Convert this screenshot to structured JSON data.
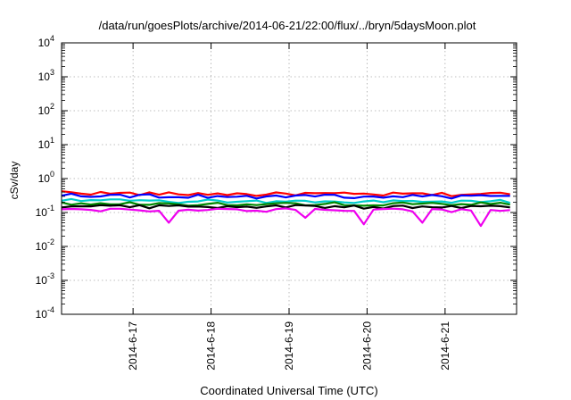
{
  "chart_data": {
    "type": "line",
    "title": "/data/run/goesPlots/archive/2014-06-21/22:00/flux/../bryn/5daysMoon.plot",
    "xlabel": "Coordinated Universal Time (UTC)",
    "ylabel": "cSv/day",
    "yscale": "log",
    "ylim": [
      0.0001,
      10000
    ],
    "xlim": [
      "2014-06-16 02:00",
      "2014-06-21 22:00"
    ],
    "grid": true,
    "x_ticks": [
      {
        "value": "2014-06-17 00:00",
        "label": "2014-6-17"
      },
      {
        "value": "2014-06-18 00:00",
        "label": "2014-6-18"
      },
      {
        "value": "2014-06-19 00:00",
        "label": "2014-6-19"
      },
      {
        "value": "2014-06-20 00:00",
        "label": "2014-6-20"
      },
      {
        "value": "2014-06-21 00:00",
        "label": "2014-6-21"
      }
    ],
    "y_ticks": [
      {
        "value": 0.0001,
        "base": "10",
        "exp": "-4"
      },
      {
        "value": 0.001,
        "base": "10",
        "exp": "-3"
      },
      {
        "value": 0.01,
        "base": "10",
        "exp": "-2"
      },
      {
        "value": 0.1,
        "base": "10",
        "exp": "-1"
      },
      {
        "value": 1,
        "base": "10",
        "exp": "0"
      },
      {
        "value": 10,
        "base": "10",
        "exp": "1"
      },
      {
        "value": 100,
        "base": "10",
        "exp": "2"
      },
      {
        "value": 1000,
        "base": "10",
        "exp": "3"
      },
      {
        "value": 10000,
        "base": "10",
        "exp": "4"
      }
    ],
    "series": [
      {
        "color": "#ff0000",
        "x": [
          "2014-06-16 02:00",
          "2014-06-16 14:00",
          "2014-06-17 02:00",
          "2014-06-17 14:00",
          "2014-06-18 02:00",
          "2014-06-18 14:00",
          "2014-06-19 02:00",
          "2014-06-19 14:00",
          "2014-06-20 02:00",
          "2014-06-20 14:00",
          "2014-06-21 02:00",
          "2014-06-21 14:00",
          "2014-06-21 22:00"
        ],
        "values": [
          0.4,
          0.37,
          0.36,
          0.35,
          0.36,
          0.34,
          0.36,
          0.35,
          0.34,
          0.35,
          0.34,
          0.36,
          0.35
        ]
      },
      {
        "color": "#0000ff",
        "x": [
          "2014-06-16 02:00",
          "2014-06-16 14:00",
          "2014-06-17 02:00",
          "2014-06-17 14:00",
          "2014-06-18 02:00",
          "2014-06-18 14:00",
          "2014-06-19 02:00",
          "2014-06-19 14:00",
          "2014-06-20 02:00",
          "2014-06-20 14:00",
          "2014-06-21 02:00",
          "2014-06-21 14:00",
          "2014-06-21 22:00"
        ],
        "values": [
          0.35,
          0.32,
          0.31,
          0.3,
          0.31,
          0.29,
          0.31,
          0.3,
          0.29,
          0.3,
          0.29,
          0.31,
          0.3
        ]
      },
      {
        "color": "#00cccc",
        "x": [
          "2014-06-16 02:00",
          "2014-06-16 14:00",
          "2014-06-17 02:00",
          "2014-06-17 14:00",
          "2014-06-18 02:00",
          "2014-06-18 14:00",
          "2014-06-19 02:00",
          "2014-06-19 14:00",
          "2014-06-20 02:00",
          "2014-06-20 14:00",
          "2014-06-21 02:00",
          "2014-06-21 14:00",
          "2014-06-21 22:00"
        ],
        "values": [
          0.23,
          0.22,
          0.22,
          0.21,
          0.22,
          0.21,
          0.22,
          0.21,
          0.21,
          0.21,
          0.21,
          0.22,
          0.21
        ]
      },
      {
        "color": "#008800",
        "x": [
          "2014-06-16 02:00",
          "2014-06-16 14:00",
          "2014-06-17 02:00",
          "2014-06-17 14:00",
          "2014-06-18 02:00",
          "2014-06-18 14:00",
          "2014-06-19 02:00",
          "2014-06-19 14:00",
          "2014-06-20 02:00",
          "2014-06-20 14:00",
          "2014-06-21 02:00",
          "2014-06-21 14:00",
          "2014-06-21 22:00"
        ],
        "values": [
          0.19,
          0.18,
          0.18,
          0.18,
          0.18,
          0.17,
          0.18,
          0.18,
          0.17,
          0.18,
          0.17,
          0.18,
          0.18
        ]
      },
      {
        "color": "#000000",
        "x": [
          "2014-06-16 02:00",
          "2014-06-16 14:00",
          "2014-06-17 02:00",
          "2014-06-17 14:00",
          "2014-06-18 02:00",
          "2014-06-18 14:00",
          "2014-06-19 02:00",
          "2014-06-19 14:00",
          "2014-06-20 02:00",
          "2014-06-20 14:00",
          "2014-06-21 02:00",
          "2014-06-21 14:00",
          "2014-06-21 22:00"
        ],
        "values": [
          0.16,
          0.155,
          0.15,
          0.15,
          0.15,
          0.145,
          0.15,
          0.15,
          0.145,
          0.15,
          0.145,
          0.15,
          0.15
        ]
      },
      {
        "color": "#ee00ee",
        "x": [
          "2014-06-16 02:00",
          "2014-06-16 14:00",
          "2014-06-17 02:00",
          "2014-06-17 14:00",
          "2014-06-18 02:00",
          "2014-06-18 14:00",
          "2014-06-19 02:00",
          "2014-06-19 14:00",
          "2014-06-20 02:00",
          "2014-06-20 14:00",
          "2014-06-21 02:00",
          "2014-06-21 14:00",
          "2014-06-21 22:00"
        ],
        "values": [
          0.13,
          0.12,
          0.12,
          0.12,
          0.12,
          0.115,
          0.12,
          0.12,
          0.115,
          0.12,
          0.115,
          0.12,
          0.12
        ],
        "dips": [
          {
            "x": "2014-06-17 10:00",
            "value": 0.05
          },
          {
            "x": "2014-06-19 04:00",
            "value": 0.07
          },
          {
            "x": "2014-06-20 00:00",
            "value": 0.045
          },
          {
            "x": "2014-06-20 17:00",
            "value": 0.05
          },
          {
            "x": "2014-06-21 12:00",
            "value": 0.04
          }
        ]
      }
    ]
  }
}
